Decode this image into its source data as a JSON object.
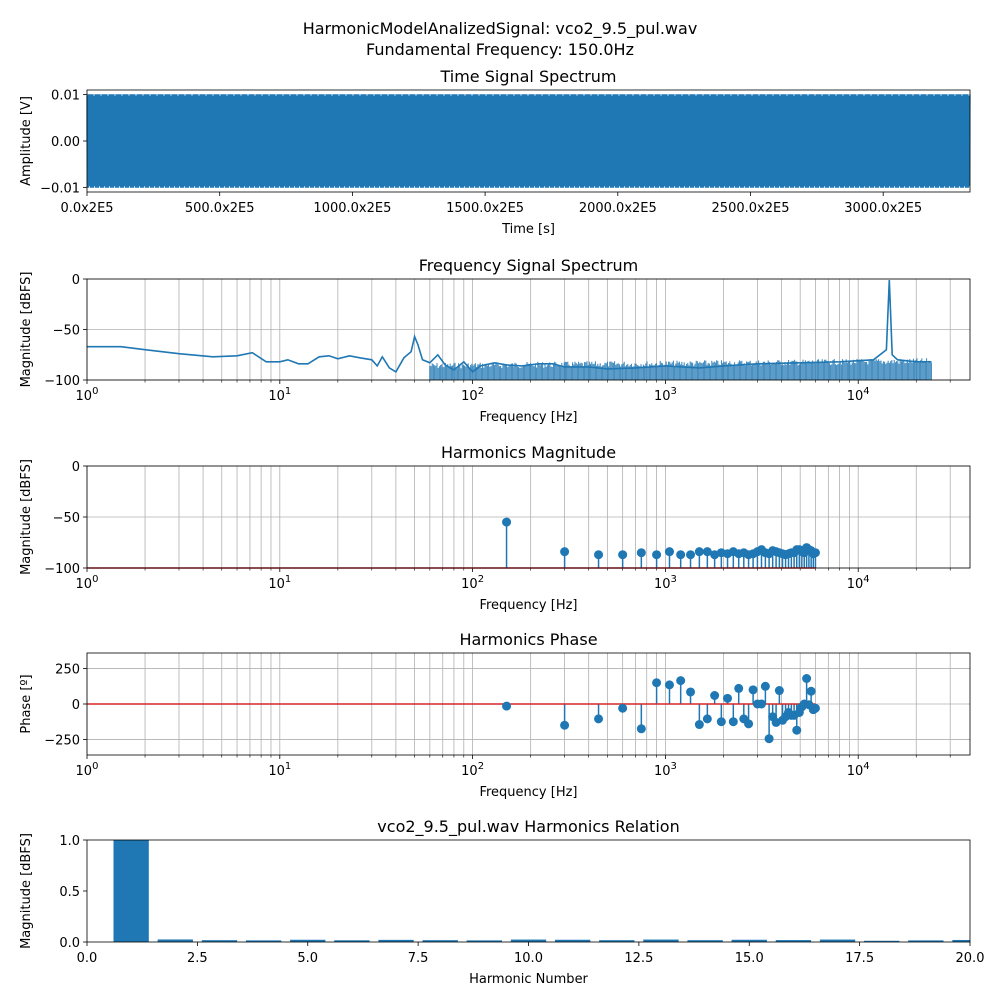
{
  "figure": {
    "suptitle_line1": "HarmonicModelAnalizedSignal: vco2_9.5_pul.wav",
    "suptitle_line2": "Fundamental Frequency: 150.0Hz"
  },
  "colors": {
    "series": "#1f77b4",
    "baseline": "#d62728",
    "grid": "#b0b0b0"
  },
  "chart_data": [
    {
      "type": "line",
      "title": "Time Signal Spectrum",
      "xlabel": "Time [s]",
      "ylabel": "Amplitude [V]",
      "ylim": [
        -0.011,
        0.011
      ],
      "yticks": [
        -0.01,
        0.0,
        0.01
      ],
      "yticklabels": [
        "−0.01",
        "0.00",
        "0.01"
      ],
      "xticklabels": [
        "0.0x2E5",
        "500.0x2E5",
        "1000.0x2E5",
        "1500.0x2E5",
        "2000.0x2E5",
        "2500.0x2E5",
        "3000.0x2E5"
      ],
      "amplitude": 0.0101,
      "grid": false
    },
    {
      "type": "line",
      "title": "Frequency Signal Spectrum",
      "xlabel": "Frequency [Hz]",
      "ylabel": "Magnitude [dBFS]",
      "xscale": "log",
      "xlim": [
        1,
        38000
      ],
      "ylim": [
        -100,
        0
      ],
      "yticks": [
        -100,
        -50,
        0
      ],
      "yticklabels": [
        "−100",
        "−50",
        "0"
      ],
      "xticklabels": [
        "10^0",
        "10^1",
        "10^2",
        "10^3",
        "10^4"
      ],
      "grid": true,
      "x": [
        1,
        1.5,
        2,
        3,
        4.5,
        6,
        7.2,
        8.5,
        10,
        11,
        12.5,
        14,
        16,
        18,
        20,
        23,
        26,
        30,
        32,
        34,
        37,
        40,
        44,
        48,
        50,
        52,
        55,
        60,
        66,
        72,
        80,
        90,
        100,
        110,
        130,
        150,
        180,
        220,
        260,
        300,
        400,
        500,
        700,
        1000,
        1500,
        2000,
        3000,
        5000,
        8000,
        12000,
        14000,
        14500,
        15000,
        16000,
        20000,
        24000
      ],
      "y": [
        -67,
        -67,
        -70,
        -74,
        -77,
        -76,
        -73,
        -82,
        -82,
        -80,
        -84,
        -84,
        -77,
        -76,
        -79,
        -76,
        -78,
        -80,
        -86,
        -77,
        -88,
        -92,
        -78,
        -72,
        -57,
        -65,
        -80,
        -83,
        -75,
        -85,
        -90,
        -82,
        -92,
        -86,
        -83,
        -85,
        -86,
        -84,
        -84,
        -87,
        -87,
        -89,
        -88,
        -86,
        -88,
        -86,
        -84,
        -83,
        -82,
        -80,
        -70,
        -1,
        -75,
        -80,
        -82,
        -82
      ]
    },
    {
      "type": "stem",
      "title": "Harmonics Magnitude",
      "xlabel": "Frequency [Hz]",
      "ylabel": "Magnitude [dBFS]",
      "xscale": "log",
      "xlim": [
        1,
        38000
      ],
      "ylim": [
        -100,
        0
      ],
      "baseline": -100,
      "yticks": [
        -100,
        -50,
        0
      ],
      "yticklabels": [
        "−100",
        "−50",
        "0"
      ],
      "xticklabels": [
        "10^0",
        "10^1",
        "10^2",
        "10^3",
        "10^4"
      ],
      "grid": true,
      "x": [
        150,
        300,
        450,
        600,
        750,
        900,
        1050,
        1200,
        1350,
        1500,
        1650,
        1800,
        1950,
        2100,
        2250,
        2400,
        2550,
        2700,
        2850,
        3000,
        3150,
        3300,
        3450,
        3600,
        3750,
        3900,
        4050,
        4200,
        4350,
        4500,
        4650,
        4800,
        4950,
        5100,
        5250,
        5400,
        5550,
        5700,
        5850,
        6000
      ],
      "y": [
        -55,
        -84,
        -87,
        -87,
        -85,
        -87,
        -84,
        -87,
        -87,
        -84,
        -84,
        -87,
        -85,
        -86,
        -84,
        -86,
        -85,
        -87,
        -86,
        -84,
        -82,
        -85,
        -86,
        -83,
        -84,
        -85,
        -86,
        -87,
        -86,
        -85,
        -85,
        -82,
        -82,
        -84,
        -85,
        -80,
        -82,
        -83,
        -86,
        -85
      ]
    },
    {
      "type": "stem",
      "title": "Harmonics Phase",
      "xlabel": "Frequency [Hz]",
      "ylabel": "Phase [º]",
      "xscale": "log",
      "xlim": [
        1,
        38000
      ],
      "ylim": [
        -360,
        360
      ],
      "baseline": 0,
      "yticks": [
        -250,
        0,
        250
      ],
      "yticklabels": [
        "−250",
        "0",
        "250"
      ],
      "xticklabels": [
        "10^0",
        "10^1",
        "10^2",
        "10^3",
        "10^4"
      ],
      "grid": true,
      "x": [
        150,
        300,
        450,
        600,
        750,
        900,
        1050,
        1200,
        1350,
        1500,
        1650,
        1800,
        1950,
        2100,
        2250,
        2400,
        2550,
        2700,
        2850,
        3000,
        3150,
        3300,
        3450,
        3600,
        3750,
        3900,
        4050,
        4200,
        4350,
        4500,
        4650,
        4800,
        4950,
        5100,
        5250,
        5400,
        5550,
        5700,
        5850,
        6000
      ],
      "y": [
        -15,
        -150,
        -105,
        -30,
        -175,
        150,
        135,
        165,
        85,
        -145,
        -105,
        60,
        -125,
        40,
        -125,
        110,
        -105,
        -140,
        100,
        0,
        0,
        125,
        -245,
        -90,
        -130,
        95,
        -115,
        -90,
        -60,
        -80,
        -80,
        -185,
        -60,
        -20,
        0,
        180,
        -5,
        90,
        -40,
        -30
      ]
    },
    {
      "type": "bar",
      "title": "vco2_9.5_pul.wav Harmonics Relation",
      "xlabel": "Harmonic Number",
      "ylabel": "Magnitude [dBFS]",
      "xlim": [
        0,
        20
      ],
      "ylim": [
        0,
        1
      ],
      "xticks": [
        0,
        2.5,
        5,
        7.5,
        10,
        12.5,
        15,
        17.5,
        20
      ],
      "xticklabels": [
        "0.0",
        "2.5",
        "5.0",
        "7.5",
        "10.0",
        "12.5",
        "15.0",
        "17.5",
        "20.0"
      ],
      "yticks": [
        0,
        0.5,
        1
      ],
      "yticklabels": [
        "0.0",
        "0.5",
        "1.0"
      ],
      "grid": false,
      "categories": [
        1,
        2,
        3,
        4,
        5,
        6,
        7,
        8,
        9,
        10,
        11,
        12,
        13,
        14,
        15,
        16,
        17,
        18,
        19,
        20
      ],
      "values": [
        1.0,
        0.025,
        0.018,
        0.016,
        0.022,
        0.017,
        0.021,
        0.018,
        0.016,
        0.024,
        0.022,
        0.018,
        0.024,
        0.018,
        0.022,
        0.019,
        0.024,
        0.012,
        0.016,
        0.02
      ]
    }
  ]
}
